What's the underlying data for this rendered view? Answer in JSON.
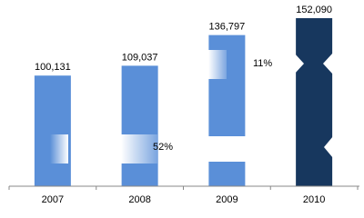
{
  "chart_data": {
    "type": "bar",
    "categories": [
      "2007",
      "2008",
      "2009",
      "2010"
    ],
    "values": [
      100131,
      109037,
      136797,
      152090
    ],
    "value_labels": [
      "100,131",
      "109,037",
      "136,797",
      "152,090"
    ],
    "colors": [
      "#5a8fd8",
      "#5a8fd8",
      "#5a8fd8",
      "#17375e"
    ],
    "annotations": [
      {
        "text": "52%"
      },
      {
        "text": "11%"
      }
    ]
  }
}
